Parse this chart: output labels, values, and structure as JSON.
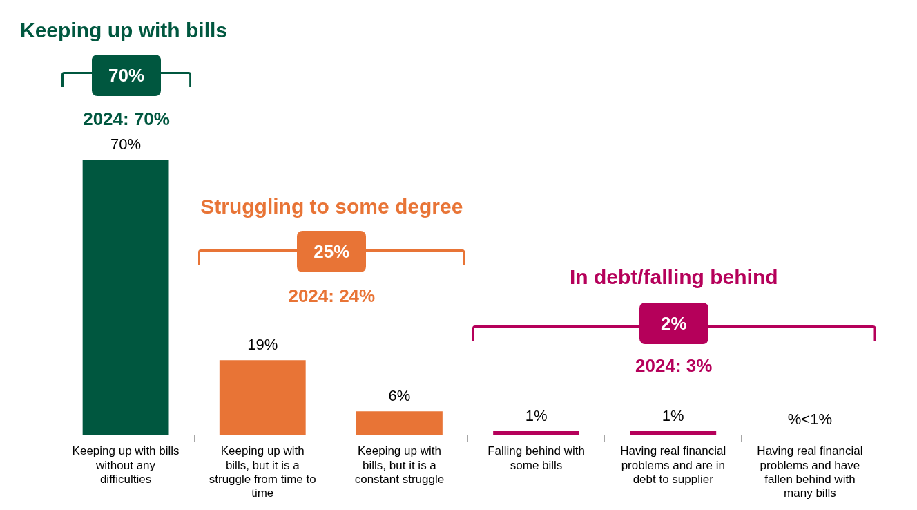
{
  "chart_data": {
    "type": "bar",
    "categories": [
      "Keeping up with bills without any difficulties",
      "Keeping up with bills, but it is a struggle from time to time",
      "Keeping up with bills, but it is a constant struggle",
      "Falling behind with some bills",
      "Having real financial problems and are in debt to supplier",
      "Having real financial problems and have fallen behind with many bills"
    ],
    "values": [
      70,
      19,
      6,
      1,
      1,
      0
    ],
    "colors": [
      "#00573f",
      "#e87436",
      "#e87436",
      "#b5005a",
      "#b5005a",
      "#b5005a"
    ],
    "value_labels": [
      "70%",
      "19%",
      "6%",
      "1%",
      "1%",
      "%<1%"
    ],
    "annotations": [
      "Keeping up with bills",
      "70%",
      "2024: 70%",
      "Struggling to some degree",
      "25%",
      "2024: 24%",
      "In debt/falling behind",
      "2%",
      "2024: 3%"
    ]
  }
}
